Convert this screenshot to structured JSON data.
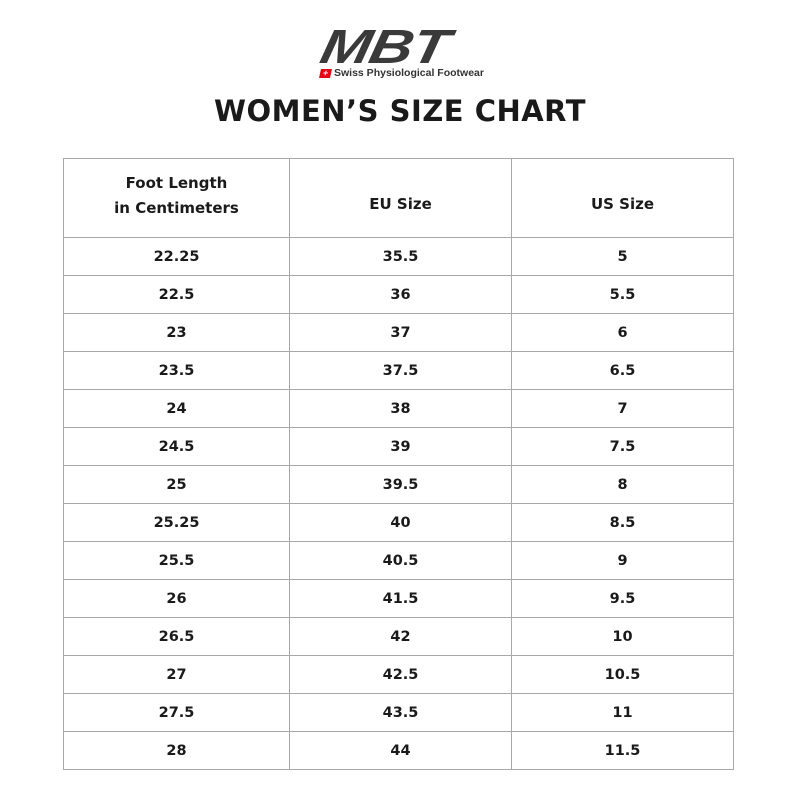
{
  "logo": {
    "brand": "MBT",
    "tagline": "Swiss Physiological Footwear",
    "accent": "#e30613"
  },
  "title": "WOMEN’S SIZE CHART",
  "table": {
    "headers": [
      {
        "line1": "Foot Length",
        "line2": "in Centimeters"
      },
      {
        "line1": "EU Size"
      },
      {
        "line1": "US Size"
      }
    ],
    "rows": [
      [
        "22.25",
        "35.5",
        "5"
      ],
      [
        "22.5",
        "36",
        "5.5"
      ],
      [
        "23",
        "37",
        "6"
      ],
      [
        "23.5",
        "37.5",
        "6.5"
      ],
      [
        "24",
        "38",
        "7"
      ],
      [
        "24.5",
        "39",
        "7.5"
      ],
      [
        "25",
        "39.5",
        "8"
      ],
      [
        "25.25",
        "40",
        "8.5"
      ],
      [
        "25.5",
        "40.5",
        "9"
      ],
      [
        "26",
        "41.5",
        "9.5"
      ],
      [
        "26.5",
        "42",
        "10"
      ],
      [
        "27",
        "42.5",
        "10.5"
      ],
      [
        "27.5",
        "43.5",
        "11"
      ],
      [
        "28",
        "44",
        "11.5"
      ]
    ]
  }
}
